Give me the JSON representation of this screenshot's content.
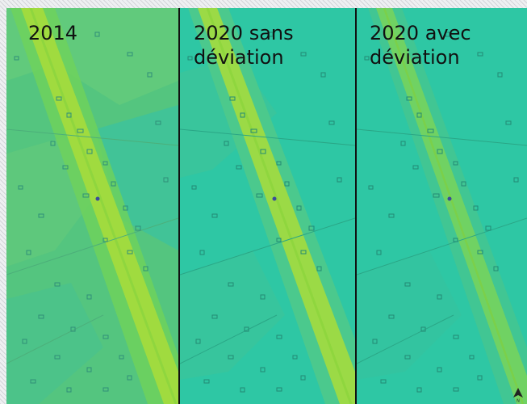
{
  "panels": [
    {
      "label": "2014"
    },
    {
      "label": "2020 sans\ndéviation"
    },
    {
      "label": "2020 avec\ndéviation"
    }
  ],
  "colors": {
    "background_2014": "#54c57f",
    "background_2020": "#2ec7a4",
    "road_core": "#a9dd3a",
    "road_mid": "#6fd25a",
    "buildings": "#2f8f78",
    "divider": "#111111"
  },
  "north_arrow": {
    "label": "N"
  },
  "icons": [
    "north-arrow-icon"
  ]
}
